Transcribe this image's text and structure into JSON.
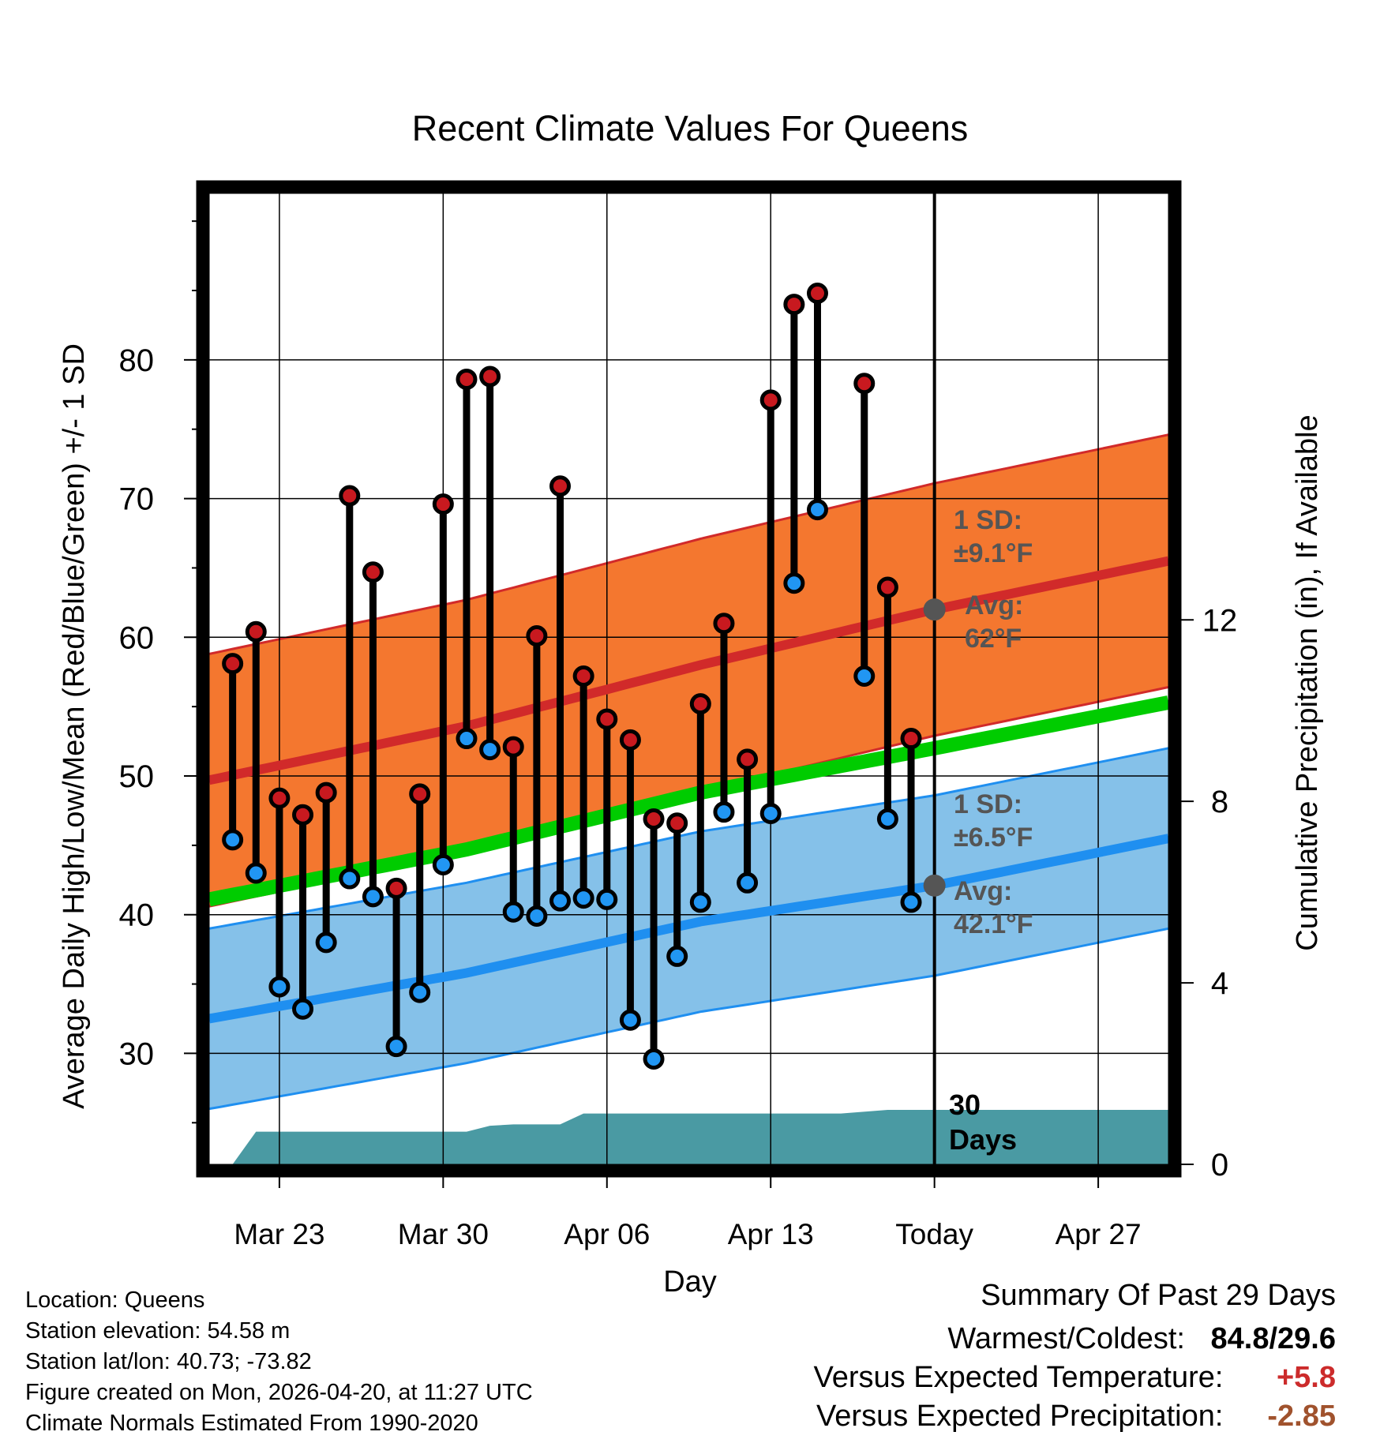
{
  "chart_data": {
    "type": "line",
    "title": "Recent Climate Values For Queens",
    "xlabel": "Day",
    "ylabel": "Average Daily High/Low/Mean (Red/Blue/Green) +/- 1 SD",
    "y2label": "Cumulative Precipitation (in), If Available",
    "x_axis": {
      "range_days": [
        -31,
        10
      ],
      "ticks": [
        {
          "day": -28,
          "label": "Mar 23"
        },
        {
          "day": -21,
          "label": "Mar 30"
        },
        {
          "day": -14,
          "label": "Apr 06"
        },
        {
          "day": -7,
          "label": "Apr 13"
        },
        {
          "day": 0,
          "label": "Today"
        },
        {
          "day": 7,
          "label": "Apr 27"
        }
      ]
    },
    "y_axis": {
      "range": [
        22,
        92
      ],
      "ticks": [
        30,
        40,
        50,
        60,
        70,
        80
      ]
    },
    "y2_axis": {
      "range": [
        0,
        21.4
      ],
      "ticks": [
        0,
        4,
        8,
        12
      ]
    },
    "normal_high": {
      "day": [
        -31,
        -20,
        -10,
        0,
        10
      ],
      "mean": [
        49.7,
        53.6,
        58.0,
        62.0,
        65.5
      ],
      "sd": 9.1
    },
    "normal_low": {
      "day": [
        -31,
        -20,
        -10,
        0,
        10
      ],
      "mean": [
        32.5,
        35.8,
        39.5,
        42.1,
        45.5
      ],
      "sd": 6.5
    },
    "normal_mean": {
      "day": [
        -31,
        -20,
        -10,
        0,
        10
      ],
      "values": [
        41.1,
        44.7,
        48.8,
        52.0,
        55.3
      ]
    },
    "daily": {
      "day": [
        -30,
        -29,
        -28,
        -27,
        -26,
        -25,
        -24,
        -23,
        -22,
        -21,
        -20,
        -19,
        -18,
        -17,
        -16,
        -15,
        -14,
        -13,
        -12,
        -11,
        -10,
        -9,
        -8,
        -7,
        -6,
        -5,
        -3,
        -2,
        -1
      ],
      "high": [
        58.1,
        60.4,
        48.4,
        47.2,
        48.8,
        70.2,
        64.7,
        41.9,
        48.7,
        69.6,
        78.6,
        78.8,
        52.1,
        60.1,
        70.9,
        57.2,
        54.1,
        52.6,
        46.9,
        46.6,
        55.2,
        61.0,
        51.2,
        77.1,
        84.0,
        84.8,
        78.3,
        63.6,
        52.7
      ],
      "low": [
        45.4,
        43.0,
        34.8,
        33.2,
        38.0,
        42.6,
        41.3,
        30.5,
        34.4,
        43.6,
        52.7,
        51.9,
        40.2,
        39.9,
        41.0,
        41.2,
        41.1,
        32.4,
        29.6,
        37.0,
        40.9,
        47.4,
        42.3,
        47.3,
        63.9,
        69.2,
        57.2,
        46.9,
        40.9
      ]
    },
    "precip": {
      "day": [
        -31,
        -30,
        -29,
        -20,
        -19,
        -18,
        -16,
        -15,
        -14,
        -4,
        -2,
        10
      ],
      "cumulative": [
        0,
        0,
        0.72,
        0.72,
        0.85,
        0.88,
        0.88,
        1.12,
        1.12,
        1.12,
        1.2,
        1.2
      ]
    },
    "annotations": {
      "high_sd_label": "1 SD:",
      "high_sd_value": "±9.1°F",
      "high_avg_label": "Avg:",
      "high_avg_value": "62°F",
      "low_sd_label": "1 SD:",
      "low_sd_value": "±6.5°F",
      "low_avg_label": "Avg:",
      "low_avg_value": "42.1°F",
      "days_label_1": "30",
      "days_label_2": "Days"
    },
    "colors": {
      "high_band": "#f4772f",
      "high_line": "#d12a2a",
      "low_band": "#85c1e9",
      "low_line": "#1f8ff0",
      "mean_line": "#00cc00",
      "precip_fill": "#4a9aa3",
      "high_marker": "#c8191f",
      "low_marker": "#2196f3",
      "annotation": "#555555"
    }
  },
  "info": {
    "location": "Location: Queens",
    "elevation": "Station elevation: 54.58 m",
    "latlon": "Station lat/lon: 40.73; -73.82",
    "created": "Figure created on Mon, 2026-04-20, at 11:27 UTC",
    "normals": "Climate Normals Estimated From 1990-2020"
  },
  "summary": {
    "title": "Summary Of Past 29 Days",
    "warmest_coldest_label": "Warmest/Coldest:",
    "warmest_coldest_value": "84.8/29.6",
    "temp_label": "Versus Expected Temperature:",
    "temp_value": "+5.8",
    "temp_color": "#cc2b2b",
    "precip_label": "Versus Expected Precipitation:",
    "precip_value": "-2.85",
    "precip_color": "#a0522d"
  }
}
